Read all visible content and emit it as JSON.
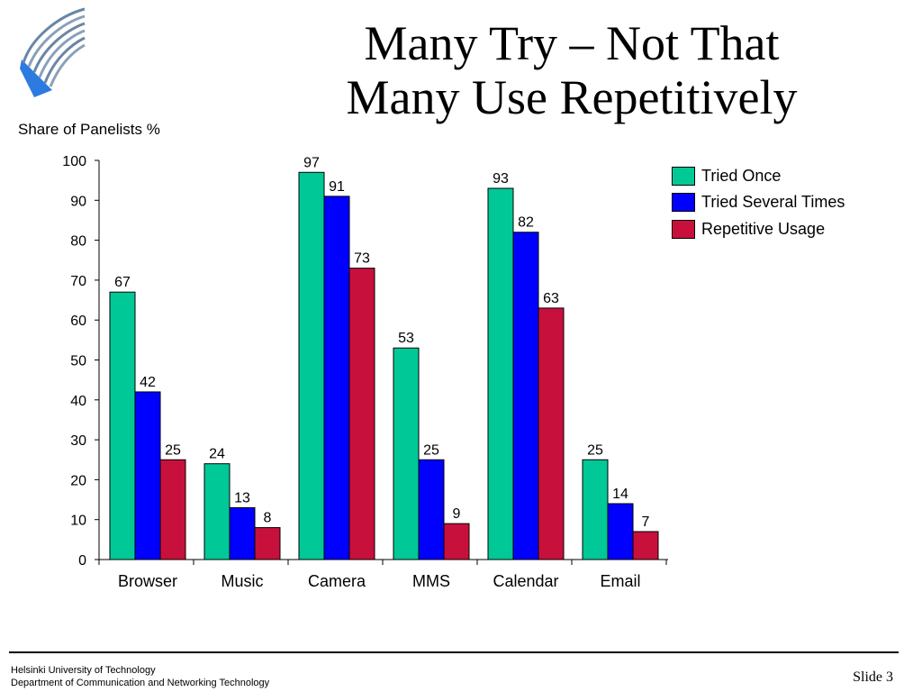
{
  "slide": {
    "title_line1": "Many Try – Not That",
    "title_line2": "Many Use Repetitively",
    "footer_line1": "Helsinki University of Technology",
    "footer_line2": "Department of Communication and Networking Technology",
    "slide_number": "Slide 3"
  },
  "chart_data": {
    "type": "bar",
    "ylabel": "Share of Panelists %",
    "xlabel": "",
    "ylim": [
      0,
      100
    ],
    "yticks": [
      0,
      10,
      20,
      30,
      40,
      50,
      60,
      70,
      80,
      90,
      100
    ],
    "grid": false,
    "legend_position": "top-right",
    "categories": [
      "Browser",
      "Music",
      "Camera",
      "MMS",
      "Calendar",
      "Email"
    ],
    "series": [
      {
        "name": "Tried Once",
        "color": "#00c896",
        "values": [
          67,
          24,
          97,
          53,
          93,
          25
        ]
      },
      {
        "name": "Tried Several Times",
        "color": "#0000ff",
        "values": [
          42,
          13,
          91,
          25,
          82,
          14
        ]
      },
      {
        "name": "Repetitive Usage",
        "color": "#c8103c",
        "values": [
          25,
          8,
          73,
          9,
          63,
          7
        ]
      }
    ]
  }
}
